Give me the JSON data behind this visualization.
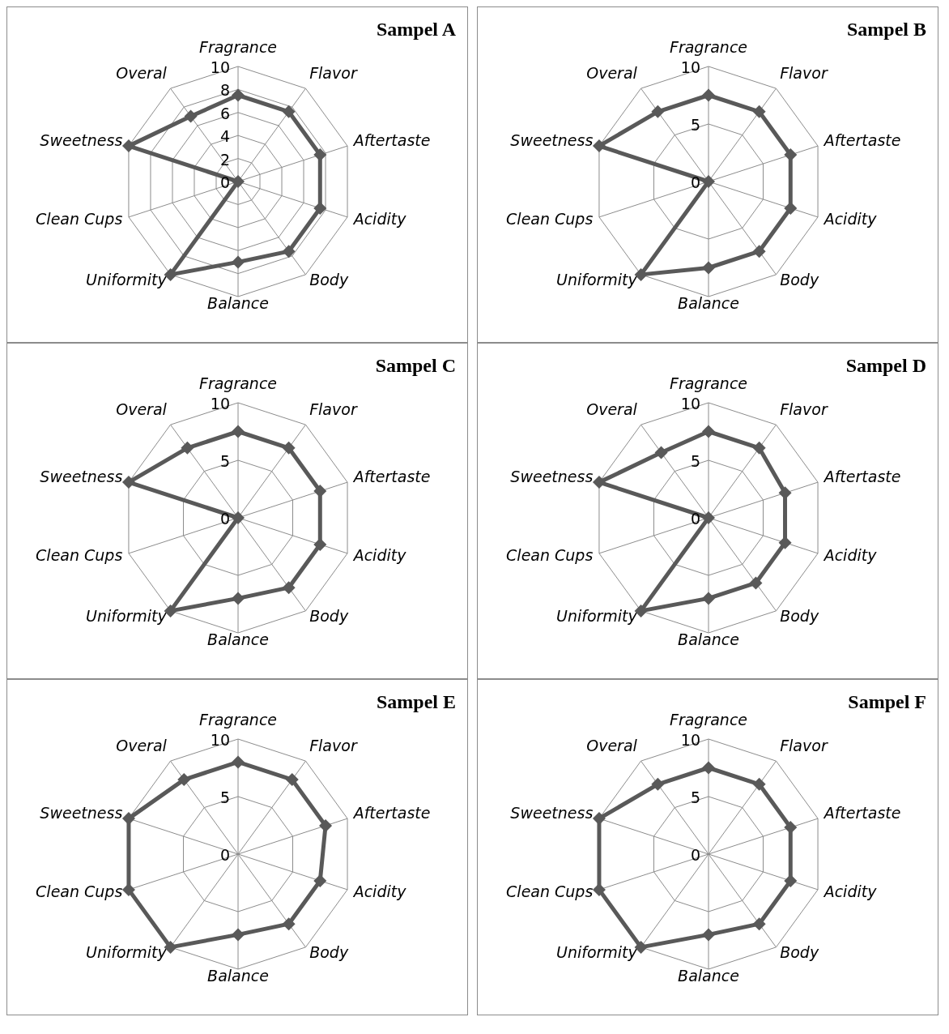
{
  "chart_data": [
    {
      "type": "radar",
      "title": "Sampel A",
      "categories": [
        "Fragrance",
        "Flavor",
        "Aftertaste",
        "Acidity",
        "Body",
        "Balance",
        "Uniformity",
        "Clean Cups",
        "Sweetness",
        "Overal"
      ],
      "series": [
        {
          "color": "#595959",
          "values": [
            7.5,
            7.5,
            7.5,
            7.5,
            7.5,
            7,
            10,
            0,
            10,
            7
          ]
        }
      ],
      "ylim": [
        0,
        10
      ],
      "yticks": [
        0,
        2,
        4,
        6,
        8,
        10
      ],
      "grid": true,
      "marker": "diamond"
    },
    {
      "type": "radar",
      "title": "Sampel B",
      "categories": [
        "Fragrance",
        "Flavor",
        "Aftertaste",
        "Acidity",
        "Body",
        "Balance",
        "Uniformity",
        "Clean Cups",
        "Sweetness",
        "Overal"
      ],
      "series": [
        {
          "color": "#595959",
          "values": [
            7.5,
            7.5,
            7.5,
            7.5,
            7.5,
            7.5,
            10,
            0,
            10,
            7.5
          ]
        }
      ],
      "ylim": [
        0,
        10
      ],
      "yticks": [
        0,
        5,
        10
      ],
      "grid": true,
      "marker": "diamond"
    },
    {
      "type": "radar",
      "title": "Sampel C",
      "categories": [
        "Fragrance",
        "Flavor",
        "Aftertaste",
        "Acidity",
        "Body",
        "Balance",
        "Uniformity",
        "Clean Cups",
        "Sweetness",
        "Overal"
      ],
      "series": [
        {
          "color": "#595959",
          "values": [
            7.5,
            7.5,
            7.5,
            7.5,
            7.5,
            7,
            10,
            0,
            10,
            7.5
          ]
        }
      ],
      "ylim": [
        0,
        10
      ],
      "yticks": [
        0,
        5,
        10
      ],
      "grid": true,
      "marker": "diamond"
    },
    {
      "type": "radar",
      "title": "Sampel D",
      "categories": [
        "Fragrance",
        "Flavor",
        "Aftertaste",
        "Acidity",
        "Body",
        "Balance",
        "Uniformity",
        "Clean Cups",
        "Sweetness",
        "Overal"
      ],
      "series": [
        {
          "color": "#595959",
          "values": [
            7.5,
            7.5,
            7,
            7,
            7,
            7,
            10,
            0,
            10,
            7
          ]
        }
      ],
      "ylim": [
        0,
        10
      ],
      "yticks": [
        0,
        5,
        10
      ],
      "grid": true,
      "marker": "diamond"
    },
    {
      "type": "radar",
      "title": "Sampel E",
      "categories": [
        "Fragrance",
        "Flavor",
        "Aftertaste",
        "Acidity",
        "Body",
        "Balance",
        "Uniformity",
        "Clean Cups",
        "Sweetness",
        "Overal"
      ],
      "series": [
        {
          "color": "#595959",
          "values": [
            8,
            8,
            8,
            7.5,
            7.5,
            7,
            10,
            10,
            10,
            8
          ]
        }
      ],
      "ylim": [
        0,
        10
      ],
      "yticks": [
        0,
        5,
        10
      ],
      "grid": true,
      "marker": "diamond"
    },
    {
      "type": "radar",
      "title": "Sampel F",
      "categories": [
        "Fragrance",
        "Flavor",
        "Aftertaste",
        "Acidity",
        "Body",
        "Balance",
        "Uniformity",
        "Clean Cups",
        "Sweetness",
        "Overal"
      ],
      "series": [
        {
          "color": "#595959",
          "values": [
            7.5,
            7.5,
            7.5,
            7.5,
            7.5,
            7,
            10,
            10,
            10,
            7.5
          ]
        }
      ],
      "ylim": [
        0,
        10
      ],
      "yticks": [
        0,
        5,
        10
      ],
      "grid": true,
      "marker": "diamond"
    }
  ]
}
